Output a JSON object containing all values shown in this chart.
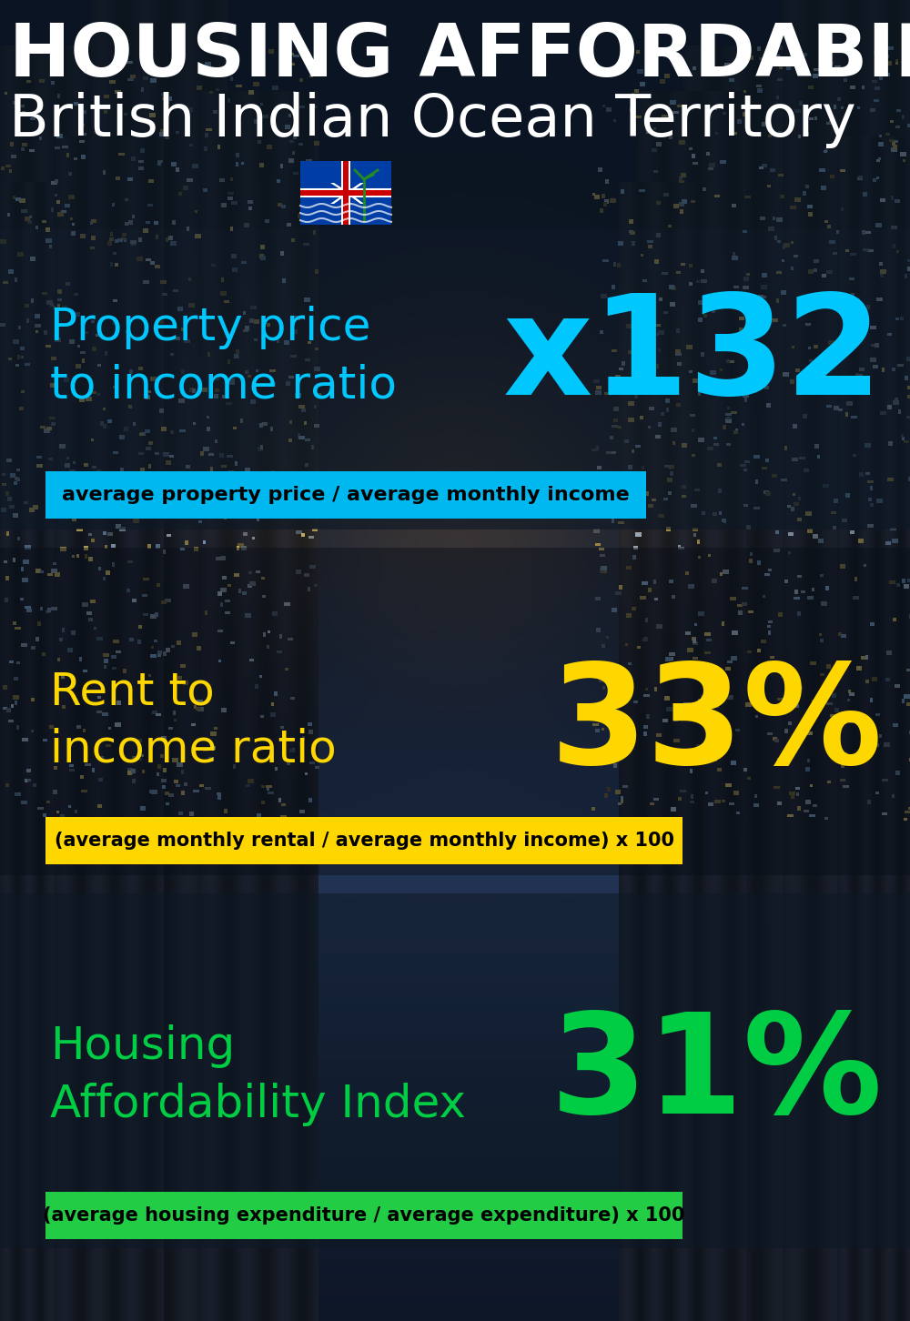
{
  "title_line1": "HOUSING AFFORDABILITY",
  "title_line2": "British Indian Ocean Territory",
  "section1_label": "Property price\nto income ratio",
  "section1_value": "x132",
  "section1_label_color": "#00c8ff",
  "section1_value_color": "#00c8ff",
  "section1_subtitle": "average property price / average monthly income",
  "section1_subtitle_bg": "#00b8f0",
  "section2_label": "Rent to\nincome ratio",
  "section2_value": "33%",
  "section2_label_color": "#ffd700",
  "section2_value_color": "#ffd700",
  "section2_subtitle": "(average monthly rental / average monthly income) x 100",
  "section2_subtitle_bg": "#ffd700",
  "section3_label": "Housing\nAffordability Index",
  "section3_value": "31%",
  "section3_label_color": "#00cc44",
  "section3_value_color": "#00cc44",
  "section3_subtitle": "(average housing expenditure / average expenditure) x 100",
  "section3_subtitle_bg": "#22cc44",
  "title_color": "#ffffff",
  "subtitle_text_color": "#000000",
  "overlay_color1": "#1a2535",
  "overlay_color2": "#0d1825"
}
